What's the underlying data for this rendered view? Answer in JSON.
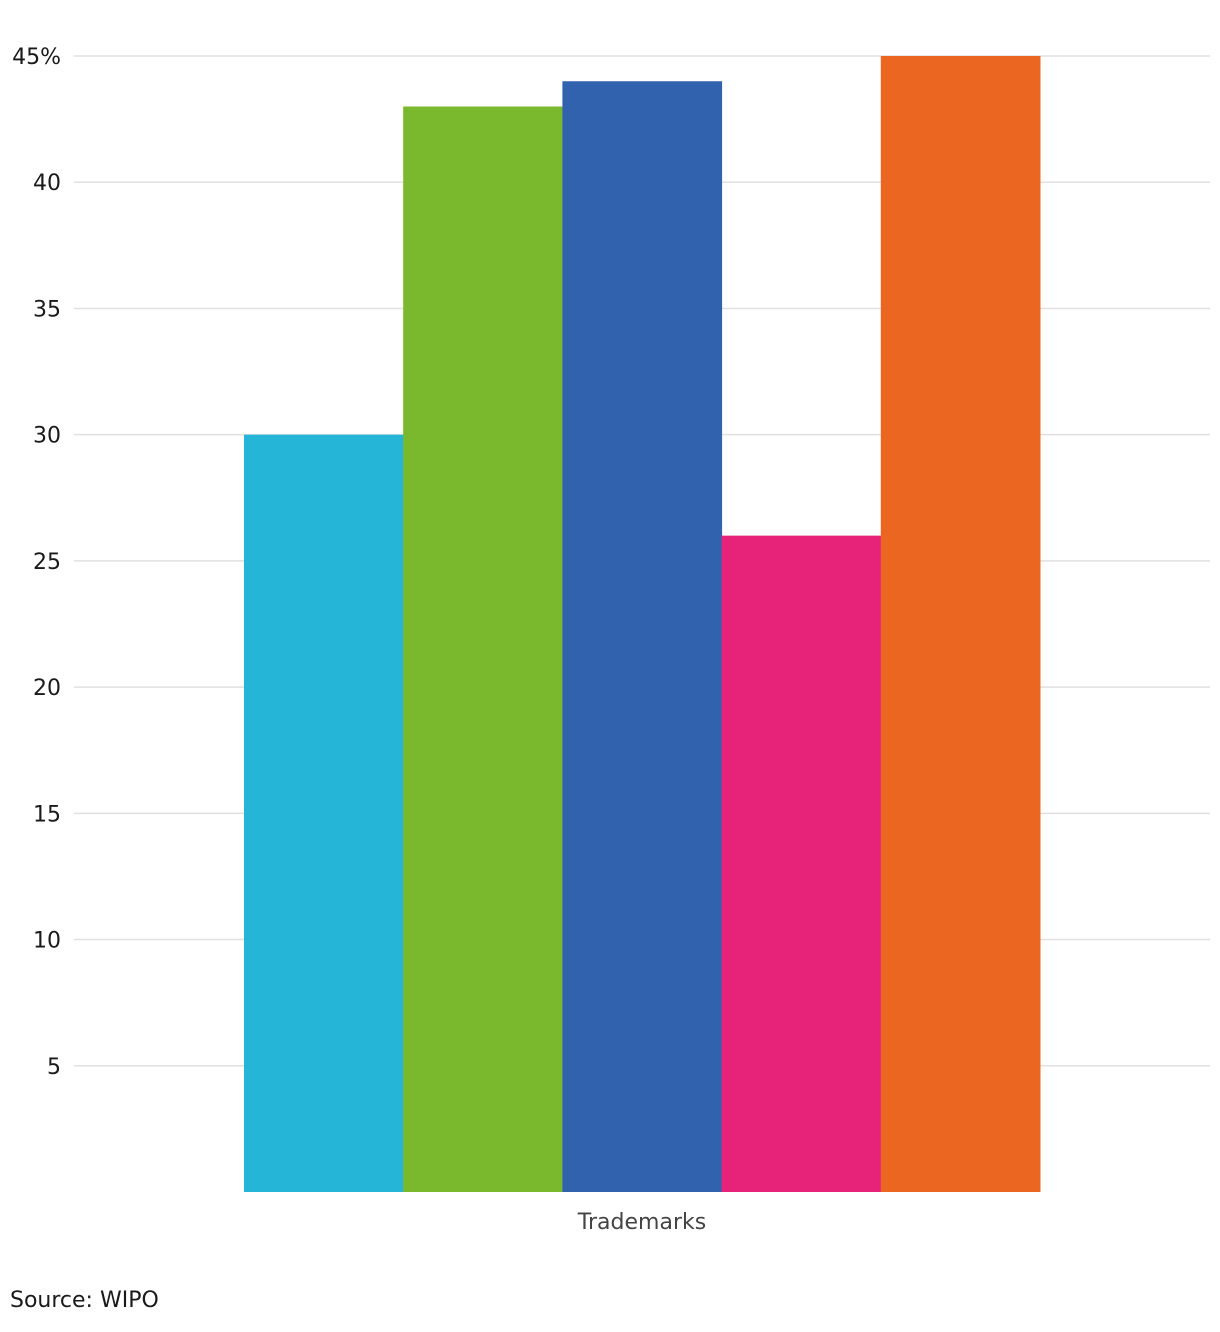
{
  "chart_data": {
    "type": "bar",
    "categories": [
      "Trademarks"
    ],
    "series": [
      {
        "values": [
          30
        ],
        "color": "#25b6d7"
      },
      {
        "values": [
          43
        ],
        "color": "#7ab82d"
      },
      {
        "values": [
          44
        ],
        "color": "#3162ad"
      },
      {
        "values": [
          26
        ],
        "color": "#e62279"
      },
      {
        "values": [
          45
        ],
        "color": "#eb6621"
      }
    ],
    "ylim": [
      0,
      45
    ],
    "yticks": [
      {
        "value": 5,
        "label": "5"
      },
      {
        "value": 10,
        "label": "10"
      },
      {
        "value": 15,
        "label": "15"
      },
      {
        "value": 20,
        "label": "20"
      },
      {
        "value": 25,
        "label": "25"
      },
      {
        "value": 30,
        "label": "30"
      },
      {
        "value": 35,
        "label": "35"
      },
      {
        "value": 40,
        "label": "40"
      },
      {
        "value": 45,
        "label": "45%"
      }
    ],
    "grid": true,
    "grid_color": "#e0e0e0",
    "legend": "none"
  },
  "source_text": "Source: WIPO"
}
